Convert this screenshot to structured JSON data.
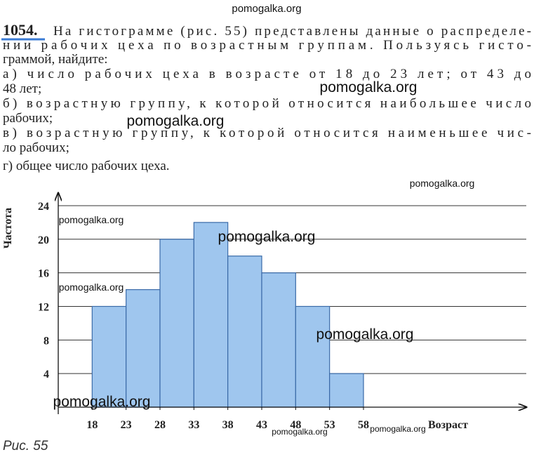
{
  "header": {
    "number": "1054.",
    "lines": [
      "На гистограмме (рис. 55) представлены данные о распределе-",
      "нии рабочих цеха по возрастным группам. Пользуясь гисто-",
      "граммой, найдите:",
      "а) число рабочих цеха в возрасте от 18 до 23 лет; от 43 до",
      "48 лет;",
      "б) возрастную группу, к которой относится наибольшее число",
      "рабочих;",
      "в) возрастную группу, к которой относится наименьшее чис-",
      "ло рабочих;",
      "г) общее число рабочих цеха."
    ]
  },
  "watermarks": [
    "pomogalka.org",
    "pomogalka.org",
    "pomogalka.org",
    "pomogalka.org",
    "pomogalka.org",
    "pomogalka.org",
    "pomogalka.org",
    "pomogalka.org",
    "pomogalka.org",
    "pomogalka.org",
    "pomogalka.org"
  ],
  "chart_data": {
    "type": "histogram",
    "bins": [
      18,
      23,
      28,
      33,
      38,
      43,
      48,
      53,
      58
    ],
    "values": [
      12,
      14,
      20,
      22,
      18,
      16,
      12,
      4
    ],
    "color": "#9fc6ee",
    "x_label": "Возраст",
    "y_label": "Частота",
    "xlim": [
      13,
      82
    ],
    "ylim": [
      0,
      25.5
    ],
    "xticks": [
      18,
      23,
      28,
      33,
      38,
      43,
      48,
      53,
      58
    ],
    "yticks": [
      4,
      8,
      12,
      16,
      20,
      24
    ],
    "grid": true
  },
  "caption": "Рис. 55"
}
